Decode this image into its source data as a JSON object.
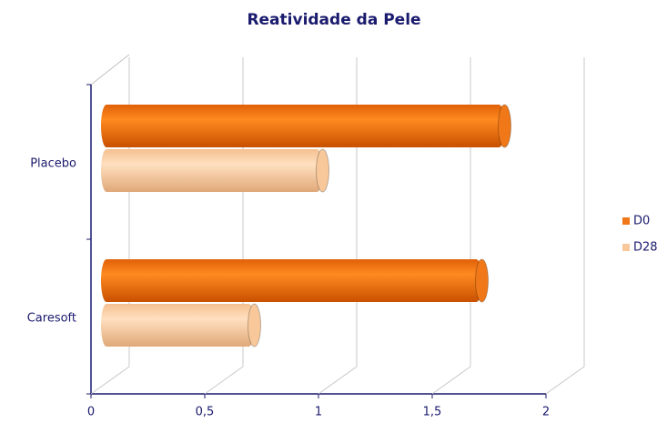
{
  "chart_data": {
    "type": "bar",
    "orientation": "horizontal",
    "title": "Reatividade da Pele",
    "categories": [
      "Placebo",
      "Caresoft"
    ],
    "series": [
      {
        "name": "D0",
        "color": "#f07818",
        "values": [
          1.75,
          1.65
        ]
      },
      {
        "name": "D28",
        "color": "#f8c89a",
        "values": [
          0.95,
          0.65
        ]
      }
    ],
    "xlim": [
      0,
      2
    ],
    "xticks": [
      0,
      {
        "value": 0.5,
        "label": "0,5"
      },
      1,
      {
        "value": 1.5,
        "label": "1,5"
      },
      2
    ],
    "grid": true,
    "legend": "right"
  }
}
